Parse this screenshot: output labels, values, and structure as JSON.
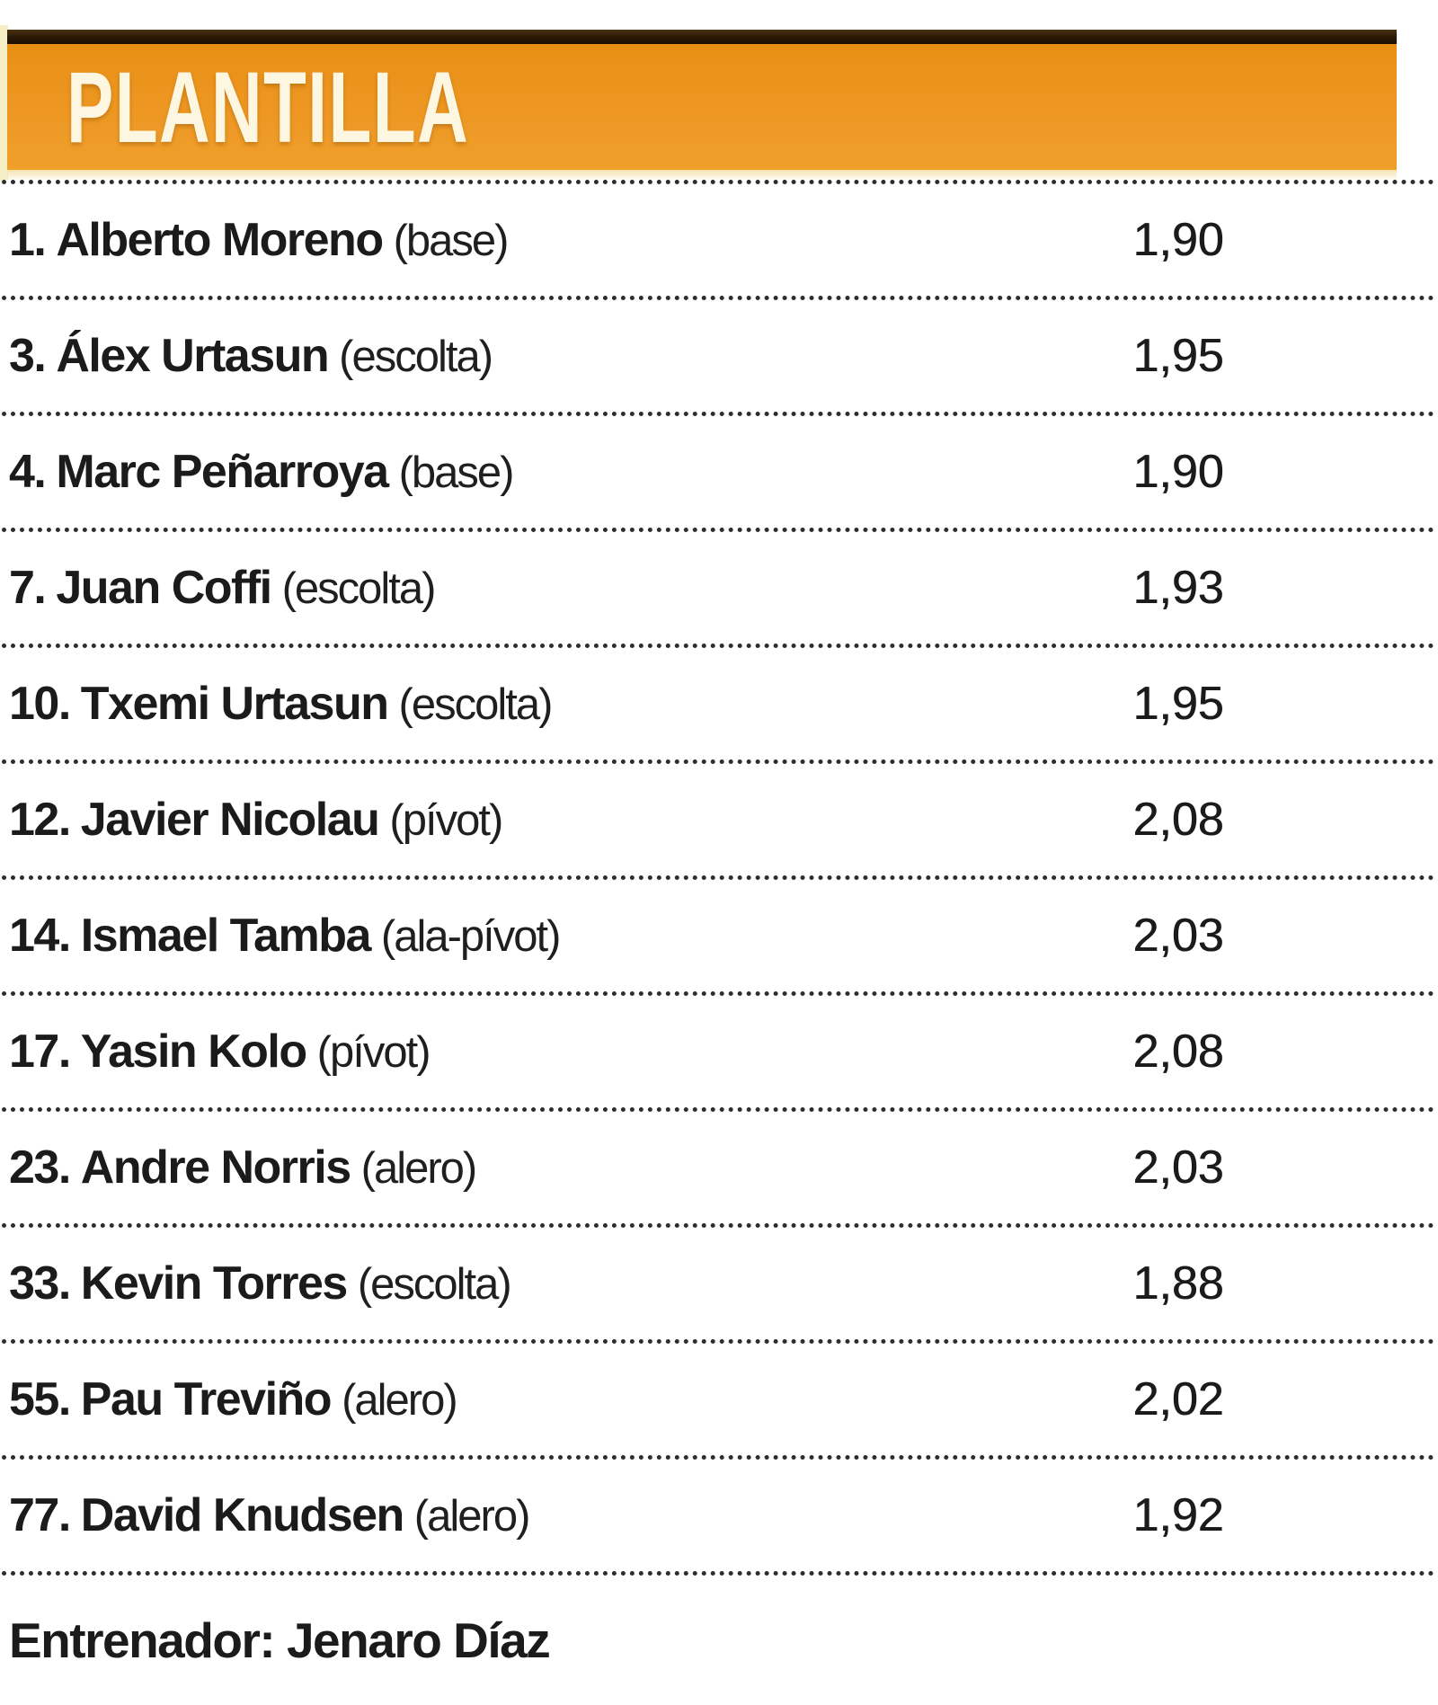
{
  "header": {
    "title": "PLANTILLA"
  },
  "table": {
    "rows": [
      {
        "number": "1.",
        "name": "Alberto Moreno",
        "position": "(base)",
        "height": "1,90"
      },
      {
        "number": "3.",
        "name": "Álex Urtasun",
        "position": "(escolta)",
        "height": "1,95"
      },
      {
        "number": "4.",
        "name": "Marc Peñarroya",
        "position": "(base)",
        "height": "1,90"
      },
      {
        "number": "7.",
        "name": "Juan Coffi",
        "position": "(escolta)",
        "height": "1,93"
      },
      {
        "number": "10.",
        "name": "Txemi Urtasun",
        "position": "(escolta)",
        "height": "1,95"
      },
      {
        "number": "12.",
        "name": "Javier Nicolau",
        "position": "(pívot)",
        "height": "2,08"
      },
      {
        "number": "14.",
        "name": "Ismael Tamba",
        "position": "(ala-pívot)",
        "height": "2,03"
      },
      {
        "number": "17.",
        "name": "Yasin Kolo",
        "position": "(pívot)",
        "height": "2,08"
      },
      {
        "number": "23.",
        "name": "Andre Norris",
        "position": "(alero)",
        "height": "2,03"
      },
      {
        "number": "33.",
        "name": "Kevin Torres",
        "position": "(escolta)",
        "height": "1,88"
      },
      {
        "number": "55.",
        "name": "Pau Treviño",
        "position": "(alero)",
        "height": "2,02"
      },
      {
        "number": "77.",
        "name": "David Knudsen",
        "position": "(alero)",
        "height": "1,92"
      }
    ]
  },
  "footer": {
    "coach": "Entrenador: Jenaro Díaz"
  },
  "colors": {
    "header_orange": "#EE9824",
    "header_dark_bar": "#2A1806",
    "title_cream": "#FDF7E2",
    "text": "#1B1B1B"
  }
}
